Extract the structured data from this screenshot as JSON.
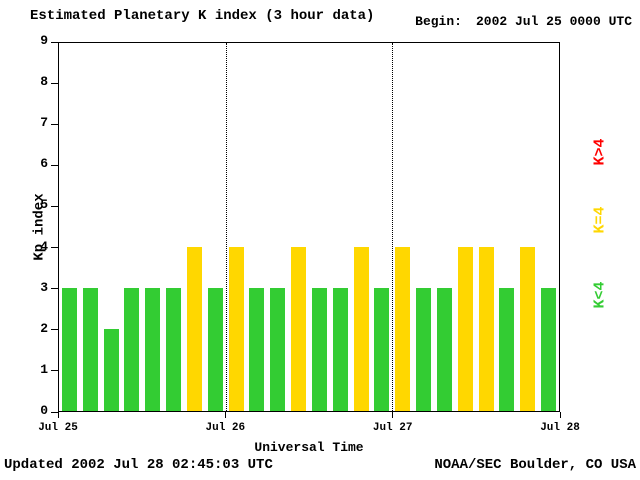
{
  "header": {
    "title": "Estimated Planetary K index (3 hour data)",
    "begin_label": "Begin:",
    "begin_value": "2002 Jul 25 0000 UTC"
  },
  "footer": {
    "updated": "Updated 2002 Jul 28 02:45:03 UTC",
    "credit": "NOAA/SEC Boulder, CO USA"
  },
  "chart_data": {
    "type": "bar",
    "title": "Estimated Planetary K index (3 hour data)",
    "xlabel": "Universal Time",
    "ylabel": "Kp index",
    "ylim": [
      0,
      9
    ],
    "yticks": [
      0,
      1,
      2,
      3,
      4,
      5,
      6,
      7,
      8,
      9
    ],
    "hours_per_bar": 3,
    "x_day_labels": [
      "Jul 25",
      "Jul 26",
      "Jul 27",
      "Jul 28"
    ],
    "series": [
      {
        "day": "Jul 25",
        "values": [
          3,
          3,
          2,
          3,
          3,
          3,
          4,
          3
        ]
      },
      {
        "day": "Jul 26",
        "values": [
          4,
          3,
          3,
          4,
          3,
          3,
          4,
          3
        ]
      },
      {
        "day": "Jul 27",
        "values": [
          4,
          3,
          3,
          4,
          4,
          3,
          4,
          3
        ]
      }
    ],
    "colors": {
      "k_lt_4": "#33cc33",
      "k_eq_4": "#ffd700",
      "k_gt_4": "#ff0000"
    },
    "legend": [
      {
        "label": "K>4",
        "color": "#ff0000"
      },
      {
        "label": "K=4",
        "color": "#ffd700"
      },
      {
        "label": "K<4",
        "color": "#33cc33"
      }
    ],
    "legend_position": "right",
    "grid": "dotted vertical lines at day boundaries"
  }
}
